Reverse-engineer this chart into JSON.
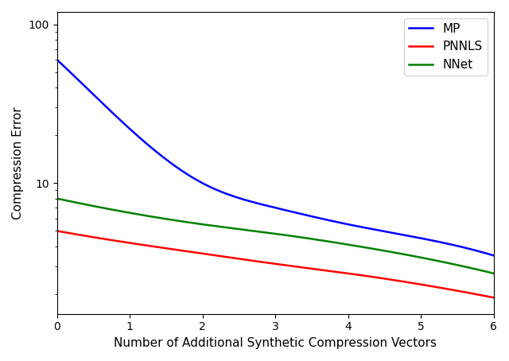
{
  "x_points": [
    0,
    1,
    2,
    3,
    4,
    5,
    6
  ],
  "mp_y": [
    60.0,
    22.0,
    10.0,
    7.0,
    5.5,
    4.5,
    3.5
  ],
  "pnnls_y": [
    5.0,
    4.2,
    3.6,
    3.1,
    2.7,
    2.3,
    1.9
  ],
  "nnet_y": [
    8.0,
    6.5,
    5.5,
    4.8,
    4.1,
    3.4,
    2.7
  ],
  "mp_color": "#0000ff",
  "pnnls_color": "#ff0000",
  "nnet_color": "#008000",
  "xlabel": "Number of Additional Synthetic Compression Vectors",
  "ylabel": "Compression Error",
  "xlim": [
    0,
    6
  ],
  "ylim": [
    1.5,
    120
  ],
  "xticks": [
    0,
    1,
    2,
    3,
    4,
    5,
    6
  ],
  "legend_labels": [
    "MP",
    "PNNLS",
    "NNet"
  ],
  "axis_fontsize": 11,
  "legend_fontsize": 11,
  "linewidth": 1.8
}
